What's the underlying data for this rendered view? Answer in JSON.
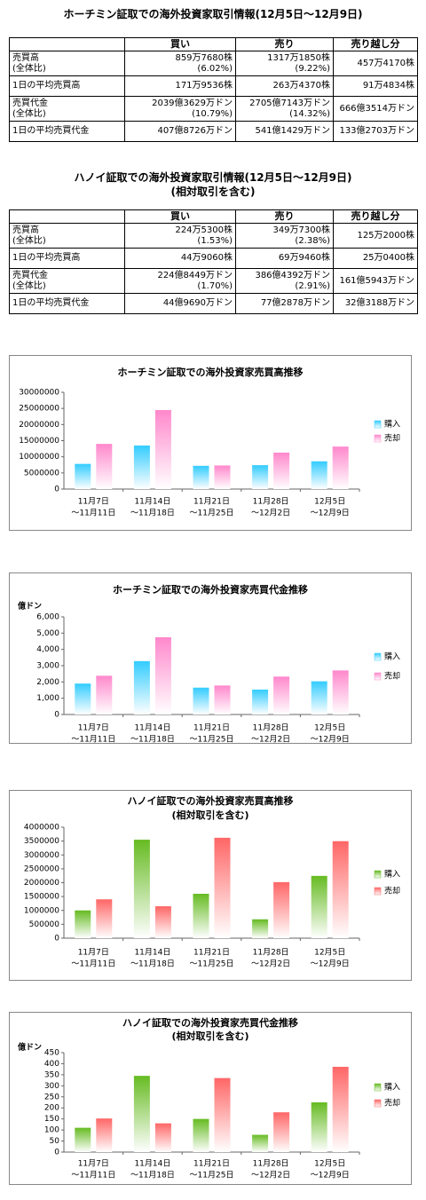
{
  "tables": [
    {
      "title": [
        "ホーチミン証取での海外投資家取引情報(12月5日～12月9日)"
      ],
      "header": [
        "買い",
        "売り",
        "売り越し分"
      ],
      "rows": [
        {
          "label": [
            "売買高",
            "(全体比)"
          ],
          "cells": [
            [
              "859万7680株",
              "(6.02%)"
            ],
            [
              "1317万1850株",
              "(9.22%)"
            ],
            [
              "457万4170株"
            ]
          ]
        },
        {
          "label": [
            "1日の平均売買高"
          ],
          "cells": [
            [
              "171万9536株"
            ],
            [
              "263万4370株"
            ],
            [
              "91万4834株"
            ]
          ]
        },
        {
          "label": [
            "売買代金",
            "(全体比)"
          ],
          "cells": [
            [
              "2039億3629万ドン",
              "(10.79%)"
            ],
            [
              "2705億7143万ドン",
              "(14.32%)"
            ],
            [
              "666億3514万ドン"
            ]
          ]
        },
        {
          "label": [
            "1日の平均売買代金"
          ],
          "cells": [
            [
              "407億8726万ドン"
            ],
            [
              "541億1429万ドン"
            ],
            [
              "133億2703万ドン"
            ]
          ]
        }
      ]
    },
    {
      "title": [
        "ハノイ証取での海外投資家取引情報(12月5日～12月9日)",
        "(相対取引を含む)"
      ],
      "header": [
        "買い",
        "売り",
        "売り越し分"
      ],
      "rows": [
        {
          "label": [
            "売買高",
            "(全体比)"
          ],
          "cells": [
            [
              "224万5300株",
              "(1.53%)"
            ],
            [
              "349万7300株",
              "(2.38%)"
            ],
            [
              "125万2000株"
            ]
          ]
        },
        {
          "label": [
            "1日の平均売買高"
          ],
          "cells": [
            [
              "44万9060株"
            ],
            [
              "69万9460株"
            ],
            [
              "25万0400株"
            ]
          ]
        },
        {
          "label": [
            "売買代金",
            "(全体比)"
          ],
          "cells": [
            [
              "224億8449万ドン",
              "(1.70%)"
            ],
            [
              "386億4392万ドン",
              "(2.91%)"
            ],
            [
              "161億5943万ドン"
            ]
          ]
        },
        {
          "label": [
            "1日の平均売買代金"
          ],
          "cells": [
            [
              "44億9690万ドン"
            ],
            [
              "77億2878万ドン"
            ],
            [
              "32億3188万ドン"
            ]
          ]
        }
      ]
    }
  ],
  "chart_data": [
    {
      "type": "bar",
      "title": "ホーチミン証取での海外投資家売買高推移",
      "categories": [
        [
          "11月7日",
          "～11月11日"
        ],
        [
          "11月14日",
          "～11月18日"
        ],
        [
          "11月21日",
          "～11月25日"
        ],
        [
          "11月28日",
          "～12月2日"
        ],
        [
          "12月5日",
          "～12月9日"
        ]
      ],
      "series": [
        {
          "name": "購入",
          "color": "#33ccff",
          "values": [
            7800000,
            13500000,
            7200000,
            7400000,
            8597680
          ]
        },
        {
          "name": "売却",
          "color": "#ff88cc",
          "values": [
            14000000,
            24500000,
            7300000,
            11300000,
            13171850
          ]
        }
      ],
      "ylim": [
        0,
        30000000
      ],
      "yticks": [
        0,
        5000000,
        10000000,
        15000000,
        20000000,
        25000000,
        30000000
      ],
      "legend": "right"
    },
    {
      "type": "bar",
      "title": "ホーチミン証取での海外投資家売買代金推移",
      "y_label": "億ドン",
      "categories": [
        [
          "11月7日",
          "～11月11日"
        ],
        [
          "11月14日",
          "～11月18日"
        ],
        [
          "11月21日",
          "～11月25日"
        ],
        [
          "11月28日",
          "～12月2日"
        ],
        [
          "12月5日",
          "～12月9日"
        ]
      ],
      "series": [
        {
          "name": "購入",
          "color": "#33ccff",
          "values": [
            1900,
            3280,
            1650,
            1530,
            2039
          ]
        },
        {
          "name": "売却",
          "color": "#ff88cc",
          "values": [
            2380,
            4750,
            1780,
            2330,
            2706
          ]
        }
      ],
      "ylim": [
        0,
        6000
      ],
      "yticks": [
        0,
        {
          "value": 1000,
          "label": "1,000"
        },
        {
          "value": 2000,
          "label": "2,000"
        },
        {
          "value": 3000,
          "label": "3,000"
        },
        {
          "value": 4000,
          "label": "4,000"
        },
        {
          "value": 5000,
          "label": "5,000"
        },
        {
          "value": 6000,
          "label": "6,000"
        }
      ],
      "legend": "right"
    },
    {
      "type": "bar",
      "title": "ハノイ証取での海外投資家売買高推移",
      "subtitle": "(相対取引を含む)",
      "categories": [
        [
          "11月7日",
          "～11月11日"
        ],
        [
          "11月14日",
          "～11月18日"
        ],
        [
          "11月21日",
          "～11月25日"
        ],
        [
          "11月28日",
          "～12月2日"
        ],
        [
          "12月5日",
          "～12月9日"
        ]
      ],
      "series": [
        {
          "name": "購入",
          "color": "#66bb22",
          "values": [
            1000000,
            3550000,
            1600000,
            680000,
            2245300
          ]
        },
        {
          "name": "売却",
          "color": "#ff6666",
          "values": [
            1400000,
            1150000,
            3620000,
            2020000,
            3497300
          ]
        }
      ],
      "ylim": [
        0,
        4000000
      ],
      "yticks": [
        0,
        500000,
        1000000,
        1500000,
        2000000,
        2500000,
        3000000,
        3500000,
        4000000
      ],
      "legend": "right"
    },
    {
      "type": "bar",
      "title": "ハノイ証取での海外投資家売買代金推移",
      "subtitle": "(相対取引を含む)",
      "y_label": "億ドン",
      "categories": [
        [
          "11月7日",
          "～11月11日"
        ],
        [
          "11月14日",
          "～11月18日"
        ],
        [
          "11月21日",
          "～11月25日"
        ],
        [
          "11月28日",
          "～12月2日"
        ],
        [
          "12月5日",
          "～12月9日"
        ]
      ],
      "series": [
        {
          "name": "購入",
          "color": "#66bb22",
          "values": [
            110,
            345,
            150,
            78,
            225
          ]
        },
        {
          "name": "売却",
          "color": "#ff6666",
          "values": [
            152,
            130,
            335,
            180,
            386
          ]
        }
      ],
      "ylim": [
        0,
        450
      ],
      "yticks": [
        0,
        50,
        100,
        150,
        200,
        250,
        300,
        350,
        400,
        450
      ],
      "legend": "right"
    }
  ]
}
